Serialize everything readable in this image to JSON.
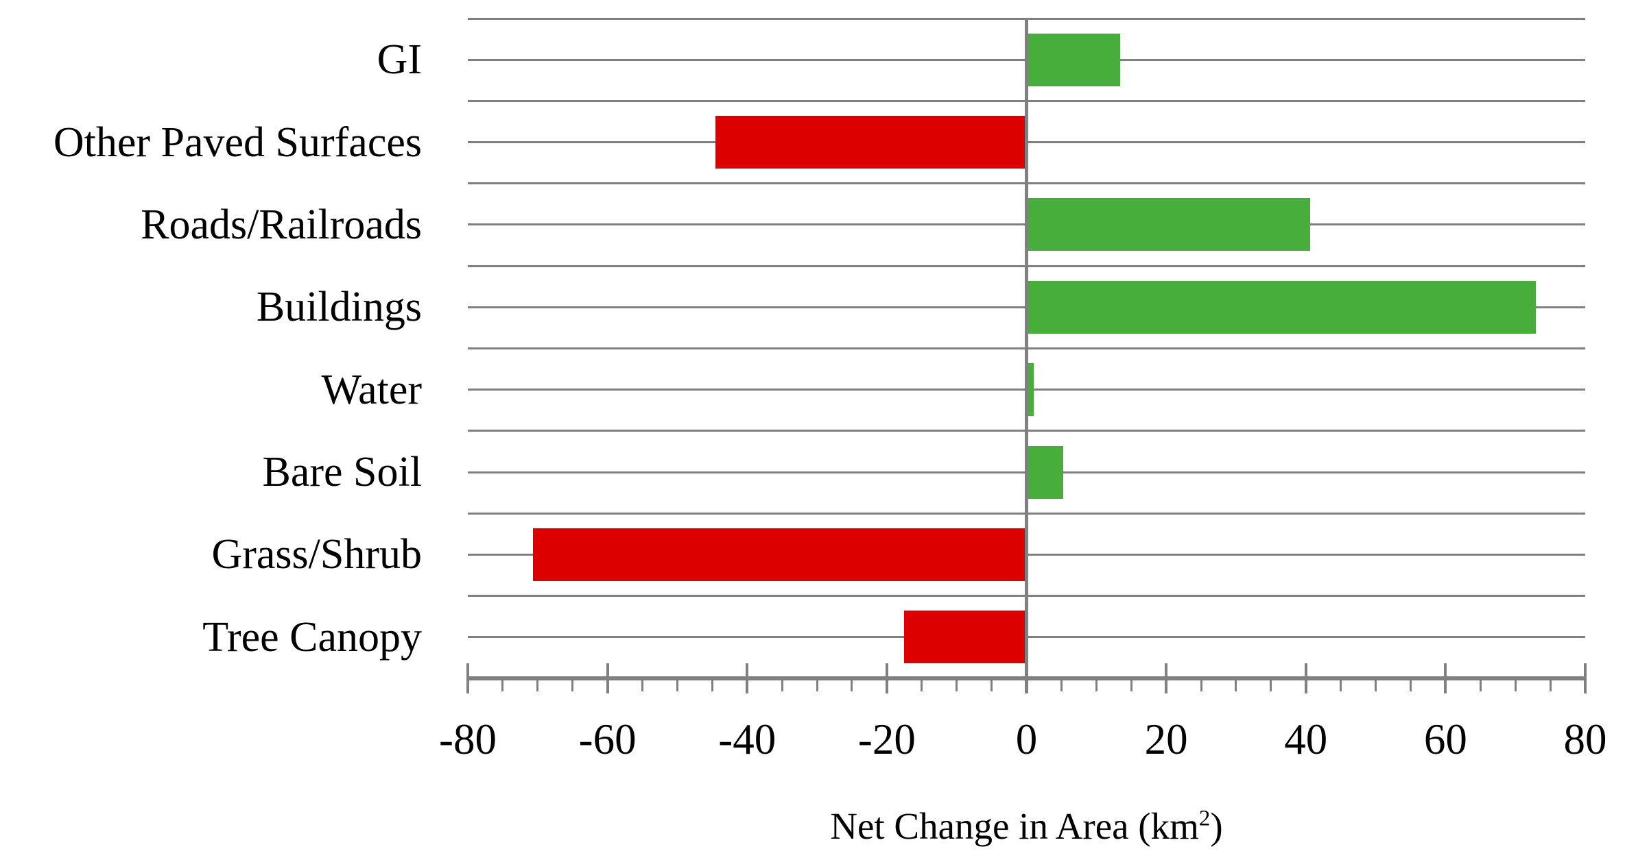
{
  "figure": {
    "background": "#ffffff"
  },
  "chart_data": {
    "type": "bar",
    "orientation": "horizontal",
    "title": "",
    "xlabel_prefix": "Net Change in Area (km",
    "xlabel_sup": "2",
    "xlabel_suffix": ")",
    "xlabel_full": "Net Change in Area (km²)",
    "ylabel": "",
    "categories": [
      "GI",
      "Other Paved Surfaces",
      "Roads/Railroads",
      "Buildings",
      "Water",
      "Bare Soil",
      "Grass/Shrub",
      "Tree Canopy"
    ],
    "values": [
      13.4,
      -44.5,
      40.6,
      72.9,
      1.0,
      5.3,
      -70.7,
      -17.5
    ],
    "xlim": [
      -80,
      80
    ],
    "x_major_tick_step": 20,
    "x_minor_tick_step": 5,
    "x_tick_labels": [
      "-80",
      "-60",
      "-40",
      "-20",
      "0",
      "20",
      "40",
      "60",
      "80"
    ],
    "grid": "horizontal-only",
    "legend": "none",
    "colors": {
      "positive_bar": "#47AE3B",
      "negative_bar": "#DD0000",
      "gridline": "#808080",
      "axis": "#808080",
      "text": "#000000"
    }
  }
}
